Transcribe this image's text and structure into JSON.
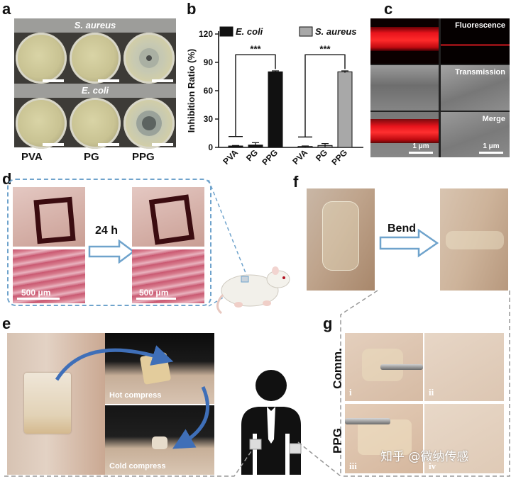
{
  "panels": {
    "a": {
      "label": "a",
      "bands": [
        "S. aureus",
        "E. coli"
      ],
      "groups": [
        "PVA",
        "PG",
        "PPG"
      ]
    },
    "b": {
      "label": "b"
    },
    "c": {
      "label": "c",
      "tiles": [
        "Fluorescence",
        "Transmission",
        "Merge"
      ],
      "scale": "1 μm"
    },
    "d": {
      "label": "d",
      "time": "24 h",
      "scale": "500 μm"
    },
    "e": {
      "label": "e",
      "hot": "Hot compress",
      "cold": "Cold compress"
    },
    "f": {
      "label": "f",
      "action": "Bend"
    },
    "g": {
      "label": "g",
      "rows": [
        "Comm.",
        "PPG"
      ],
      "numerals": [
        "i",
        "ii",
        "iii",
        "iv"
      ]
    }
  },
  "watermark": "知乎 @微纳传感",
  "colors": {
    "ecoli_bar": "#111111",
    "saureus_bar": "#a8a8a8",
    "accent_blue": "#6fa3cc",
    "fluor_red": "#e8141c"
  },
  "chart_data": {
    "type": "bar",
    "ylabel": "Inhibition Ratio (%)",
    "ylim": [
      0,
      120
    ],
    "yticks": [
      "0",
      "30",
      "60",
      "90",
      "120"
    ],
    "categories": [
      "PVA",
      "PG",
      "PPG"
    ],
    "series": [
      {
        "name": "E. coli",
        "values": [
          1.5,
          2.5,
          80
        ],
        "errors": [
          0.5,
          2.5,
          1
        ]
      },
      {
        "name": "S. aureus",
        "values": [
          1.0,
          2.0,
          80
        ],
        "errors": [
          0.5,
          2.0,
          1
        ]
      }
    ],
    "significance": "***",
    "legend_position": "top"
  }
}
